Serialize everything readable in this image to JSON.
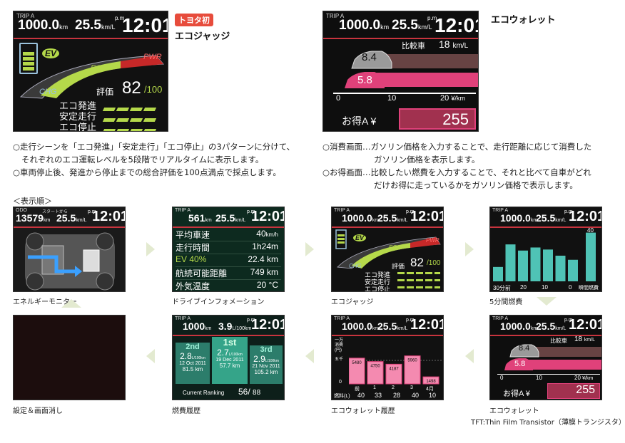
{
  "top_left": {
    "screen": {
      "trip": "TRIP A",
      "distance": "1000.0",
      "distance_unit": "km",
      "economy": "25.5",
      "economy_unit": "km/L",
      "pm": "p.m.",
      "time": "12:01",
      "ev": "EV",
      "eco": "ECO",
      "pwr": "PWR",
      "chg": "CHG",
      "score_label": "評価",
      "score": "82",
      "score_max": "/100",
      "rows": [
        {
          "label": "エコ発進"
        },
        {
          "label": "安定走行"
        },
        {
          "label": "エコ停止"
        }
      ]
    },
    "badge": "トヨタ初",
    "title": "エコジャッジ",
    "bullets": [
      "○走行シーンを「エコ発進」「安定走行」「エコ停止」の3パターンに分けて、",
      "それぞれのエコ運転レベルを5段階でリアルタイムに表示します。",
      "○車両停止後、発進から停止までの総合評価を100点満点で採点します。"
    ]
  },
  "top_right": {
    "screen": {
      "trip": "TRIP A",
      "distance": "1000.0",
      "distance_unit": "km",
      "economy": "25.5",
      "economy_unit": "km/L",
      "pm": "p.m.",
      "time": "12:01",
      "compare_label": "比較車",
      "compare_value": "18",
      "compare_unit": "km/L",
      "ghost_value": "8.4",
      "own_value": "5.8",
      "scale": [
        "0",
        "10",
        "20"
      ],
      "scale_unit": "¥/km",
      "savings_label": "お得A ¥",
      "savings_value": "255"
    },
    "title": "エコウォレット",
    "bullets": [
      "○消費画面…ガソリン価格を入力することで、走行距離に応じて消費した",
      "ガソリン価格を表示します。",
      "○お得画面…比較したい燃費を入力することで、それと比べて自車がどれ",
      "だけお得に走っているかをガソリン価格で表示します。"
    ]
  },
  "order_label": "＜表示順＞",
  "panels": {
    "energy": {
      "odo": "ODO",
      "odo_value": "13579",
      "odo_unit": "km",
      "start_label": "スタートから",
      "economy": "25.5",
      "economy_unit": "km/L",
      "pm": "p.m.",
      "time": "12:01",
      "caption": "エネルギーモニター"
    },
    "drive": {
      "trip": "TRIP A",
      "distance": "561",
      "distance_unit": "km",
      "economy": "25.5",
      "economy_unit": "km/L",
      "pm": "p.m.",
      "time": "12:01",
      "rows": [
        {
          "label": "平均車速",
          "value": "40",
          "unit": "km/h"
        },
        {
          "label": "走行時間",
          "value": "1h24m"
        },
        {
          "label": "EV 40%",
          "value": "22.4 km"
        },
        {
          "label": "航続可能距離",
          "value": "749 km"
        },
        {
          "label": "外気温度",
          "value": "20 °C"
        }
      ],
      "caption": "ドライブインフォメーション"
    },
    "eco_small": {
      "trip": "TRIP A",
      "distance": "1000.0",
      "distance_unit": "km",
      "economy": "25.5",
      "economy_unit": "km/L",
      "pm": "p.m.",
      "time": "12:01",
      "ev": "EV",
      "eco": "ECO",
      "pwr": "PWR",
      "chg": "CHG",
      "score_label": "評価",
      "score": "82",
      "score_max": "/100",
      "rows": [
        "エコ発進",
        "安定走行",
        "エコ停止"
      ],
      "caption": "エコジャッジ"
    },
    "fuel5": {
      "trip": "TRIP A",
      "distance": "1000.0",
      "distance_unit": "km",
      "economy": "25.5",
      "economy_unit": "km/L",
      "pm": "p.m.",
      "time": "12:01",
      "ticks": [
        "30分前",
        "20",
        "10",
        "0"
      ],
      "scale_top": "40",
      "scale_mid": "30",
      "instant_label": "瞬間燃費",
      "bars": [
        0.28,
        0.72,
        0.6,
        0.66,
        0.62,
        0.5,
        0.42,
        0.95
      ],
      "caption": "5分間燃費"
    },
    "settings": {
      "caption": "設定＆画面消し"
    },
    "history": {
      "trip": "TRIP A",
      "distance": "1000",
      "distance_unit": "km",
      "economy": "3.9",
      "economy_unit": "L/100km",
      "pm": "p.m.",
      "time": "12:01",
      "cards": [
        {
          "rank": "2nd",
          "value": "2.8",
          "unit": "L/100km",
          "date": "12 Oct 2011",
          "dist": "81.5",
          "dist_unit": "km"
        },
        {
          "rank": "1st",
          "value": "2.7",
          "unit": "L/100km",
          "date": "19 Dec 2011",
          "dist": "57.7",
          "dist_unit": "km"
        },
        {
          "rank": "3rd",
          "value": "2.9",
          "unit": "L/100km",
          "date": "21 Nov 2011",
          "dist": "105.2",
          "dist_unit": "km"
        }
      ],
      "ranking_label": "Current Ranking",
      "ranking_value": "56/",
      "ranking_total": "88",
      "caption": "燃費履歴"
    },
    "wallet_hist": {
      "trip": "TRIP A",
      "distance": "1000.0",
      "distance_unit": "km",
      "economy": "25.5",
      "economy_unit": "km/L",
      "pm": "p.m.",
      "time": "12:01",
      "title_line1": "一万",
      "title_line2": "消費",
      "title_line3": "(円)",
      "five_thousand": "五千",
      "zero": "0",
      "months": [
        "前",
        "1",
        "2",
        "3",
        "4月"
      ],
      "fuel_label": "燃料(L)",
      "fuel_values": [
        "40",
        "33",
        "28",
        "40",
        "10"
      ],
      "caption": "エコウォレット履歴"
    },
    "wallet_small": {
      "trip": "TRIP A",
      "distance": "1000.0",
      "distance_unit": "km",
      "economy": "25.5",
      "economy_unit": "km/L",
      "pm": "p.m.",
      "time": "12:01",
      "compare_label": "比較車",
      "compare_value": "18",
      "compare_unit": "km/L",
      "ghost_value": "8.4",
      "own_value": "5.8",
      "scale": [
        "0",
        "10",
        "20"
      ],
      "scale_unit": "¥/km",
      "savings_label": "お得A ¥",
      "savings_value": "255",
      "caption": "エコウォレット"
    }
  },
  "wallet_hist_chart": {
    "type": "bar",
    "categories": [
      "前",
      "1",
      "2",
      "3",
      "4月"
    ],
    "values": [
      5480,
      4750,
      4187,
      5960,
      1498
    ],
    "ylim": [
      0,
      10000
    ]
  },
  "footnote": "TFT:Thin Film Transistor（薄膜トランジスタ）",
  "colors": {
    "accent_green": "#b5d94a",
    "wallet_pink": "#e0417a",
    "teal_bar": "#4fc3b5",
    "arrow": "#e3ead0",
    "badge": "#e74c3c"
  }
}
